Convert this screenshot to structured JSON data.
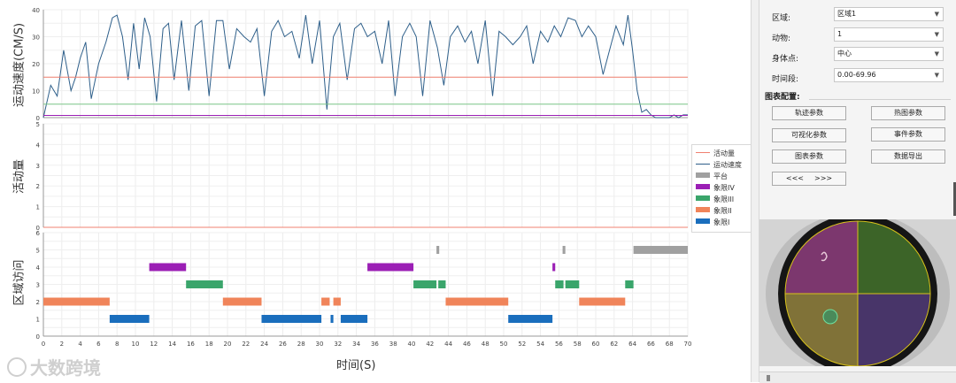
{
  "panel": {
    "region": {
      "label": "区域:",
      "value": "区域1"
    },
    "animal": {
      "label": "动物:",
      "value": "1"
    },
    "body_point": {
      "label": "身体点:",
      "value": "中心"
    },
    "time_range": {
      "label": "时间段:",
      "value": "0.00-69.96"
    },
    "chart_config_label": "图表配置:",
    "buttons": {
      "track_params": "轨迹参数",
      "heatmap_params": "热图参数",
      "visual_params": "可视化参数",
      "event_params": "事件参数",
      "chart_params": "图表参数",
      "export_data": "数据导出",
      "prev": "<<<",
      "next": ">>>"
    }
  },
  "watermark": "大数跨境",
  "colors": {
    "activity": "#f08070",
    "speed": "#2e5f8a",
    "platform": "#a0a0a0",
    "q4": "#9b1fb5",
    "q3": "#3aa56b",
    "q2": "#f0845a",
    "q1": "#1a6ebd",
    "threshold_green": "#7ec88a"
  },
  "chart_data": [
    {
      "type": "line",
      "ylabel": "运动速度(CM/S)",
      "ylim": [
        0,
        40
      ],
      "yticks": [
        0,
        10,
        20,
        30,
        40
      ],
      "xlim": [
        0,
        70
      ],
      "series": [
        {
          "name": "运动速度",
          "color_key": "speed",
          "x": [
            0,
            0.8,
            1.5,
            2.2,
            3,
            3.5,
            4,
            4.6,
            5.2,
            6,
            6.8,
            7.5,
            8,
            8.6,
            9.2,
            9.8,
            10.4,
            11,
            11.6,
            12.3,
            13,
            13.6,
            14.2,
            15,
            15.8,
            16.5,
            17.2,
            18,
            18.8,
            19.5,
            20.2,
            21,
            21.8,
            22.5,
            23.2,
            24,
            24.8,
            25.5,
            26.2,
            27,
            27.8,
            28.5,
            29.2,
            30,
            30.8,
            31.5,
            32.2,
            33,
            33.8,
            34.5,
            35.2,
            36,
            36.8,
            37.5,
            38.2,
            39,
            39.8,
            40.5,
            41.2,
            42,
            42.8,
            43.5,
            44.2,
            45,
            45.8,
            46.5,
            47.2,
            48,
            48.8,
            49.5,
            50.2,
            51,
            51.8,
            52.5,
            53.2,
            54,
            54.8,
            55.5,
            56.2,
            57,
            57.8,
            58.5,
            59.2,
            60,
            60.8,
            61.5,
            62.2,
            63,
            63.5,
            64,
            64.5,
            65,
            65.5,
            66,
            66.5,
            67,
            67.5,
            68,
            68.5,
            69,
            69.5,
            70
          ],
          "y": [
            0,
            12,
            8,
            25,
            10,
            15,
            22,
            28,
            7,
            20,
            28,
            37,
            38,
            30,
            14,
            35,
            18,
            37,
            30,
            6,
            33,
            35,
            14,
            36,
            10,
            34,
            36,
            8,
            36,
            36,
            18,
            33,
            30,
            28,
            33,
            8,
            32,
            36,
            30,
            32,
            22,
            38,
            20,
            36,
            3,
            30,
            35,
            14,
            33,
            35,
            30,
            32,
            20,
            36,
            8,
            30,
            35,
            30,
            8,
            36,
            26,
            12,
            30,
            34,
            28,
            32,
            20,
            36,
            8,
            32,
            30,
            27,
            30,
            34,
            20,
            32,
            28,
            34,
            30,
            37,
            36,
            30,
            34,
            30,
            16,
            25,
            34,
            27,
            38,
            25,
            10,
            2,
            3,
            1,
            0,
            0,
            0,
            0,
            1,
            0,
            1,
            1
          ]
        },
        {
          "name": "threshold_red_high",
          "color_key": "activity",
          "value": 15
        },
        {
          "name": "threshold_green",
          "color_key": "threshold_green",
          "value": 5
        },
        {
          "name": "threshold_low",
          "color_key": "q4",
          "value": 0.8
        }
      ]
    },
    {
      "type": "line",
      "ylabel": "活动量",
      "ylim": [
        0,
        5
      ],
      "yticks": [
        0,
        1,
        2,
        3,
        4,
        5
      ],
      "xlim": [
        0,
        70
      ],
      "series": [
        {
          "name": "活动量",
          "color_key": "activity",
          "value": 0
        }
      ]
    },
    {
      "type": "bar",
      "ylabel": "区域访问",
      "xlabel": "时间(S)",
      "ylim": [
        0,
        6
      ],
      "yticks": [
        0,
        1,
        2,
        3,
        4,
        5,
        6
      ],
      "xlim": [
        0,
        70
      ],
      "xticks": [
        0,
        2,
        4,
        6,
        8,
        10,
        12,
        14,
        16,
        18,
        20,
        22,
        24,
        26,
        28,
        30,
        32,
        34,
        36,
        38,
        40,
        42,
        44,
        46,
        48,
        50,
        52,
        54,
        56,
        58,
        60,
        62,
        64,
        66,
        68,
        70
      ],
      "legend": [
        {
          "name": "活动量",
          "kind": "line",
          "color_key": "activity"
        },
        {
          "name": "运动速度",
          "kind": "line",
          "color_key": "speed"
        },
        {
          "name": "平台",
          "kind": "bar",
          "color_key": "platform"
        },
        {
          "name": "象限IV",
          "kind": "bar",
          "color_key": "q4"
        },
        {
          "name": "象限III",
          "kind": "bar",
          "color_key": "q3"
        },
        {
          "name": "象限II",
          "kind": "bar",
          "color_key": "q2"
        },
        {
          "name": "象限I",
          "kind": "bar",
          "color_key": "q1"
        }
      ],
      "legend_position": "right",
      "intervals": [
        {
          "series": "象限II",
          "level": 2,
          "start": 0,
          "end": 7.2
        },
        {
          "series": "象限I",
          "level": 1,
          "start": 7.2,
          "end": 11.5
        },
        {
          "series": "象限IV",
          "level": 4,
          "start": 11.5,
          "end": 15.5
        },
        {
          "series": "象限III",
          "level": 3,
          "start": 15.5,
          "end": 19.5
        },
        {
          "series": "象限II",
          "level": 2,
          "start": 19.5,
          "end": 23.7
        },
        {
          "series": "象限I",
          "level": 1,
          "start": 23.7,
          "end": 30.2
        },
        {
          "series": "象限II",
          "level": 2,
          "start": 30.2,
          "end": 31.1
        },
        {
          "series": "象限I",
          "level": 1,
          "start": 31.2,
          "end": 31.5
        },
        {
          "series": "象限II",
          "level": 2,
          "start": 31.5,
          "end": 32.3
        },
        {
          "series": "象限I",
          "level": 1,
          "start": 32.3,
          "end": 35.2
        },
        {
          "series": "象限IV",
          "level": 4,
          "start": 35.2,
          "end": 40.2
        },
        {
          "series": "象限III",
          "level": 3,
          "start": 40.2,
          "end": 42.7
        },
        {
          "series": "平台",
          "level": 5,
          "start": 42.7,
          "end": 43
        },
        {
          "series": "象限III",
          "level": 3,
          "start": 42.9,
          "end": 43.7
        },
        {
          "series": "象限II",
          "level": 2,
          "start": 43.7,
          "end": 50.5
        },
        {
          "series": "象限I",
          "level": 1,
          "start": 50.5,
          "end": 55.3
        },
        {
          "series": "象限IV",
          "level": 4,
          "start": 55.3,
          "end": 55.6
        },
        {
          "series": "象限III",
          "level": 3,
          "start": 55.6,
          "end": 56.5
        },
        {
          "series": "平台",
          "level": 5,
          "start": 56.4,
          "end": 56.7
        },
        {
          "series": "象限III",
          "level": 3,
          "start": 56.7,
          "end": 58.2
        },
        {
          "series": "象限II",
          "level": 2,
          "start": 58.2,
          "end": 63.2
        },
        {
          "series": "象限III",
          "level": 3,
          "start": 63.2,
          "end": 64.1
        },
        {
          "series": "平台",
          "level": 5,
          "start": 64.1,
          "end": 70
        }
      ]
    }
  ]
}
